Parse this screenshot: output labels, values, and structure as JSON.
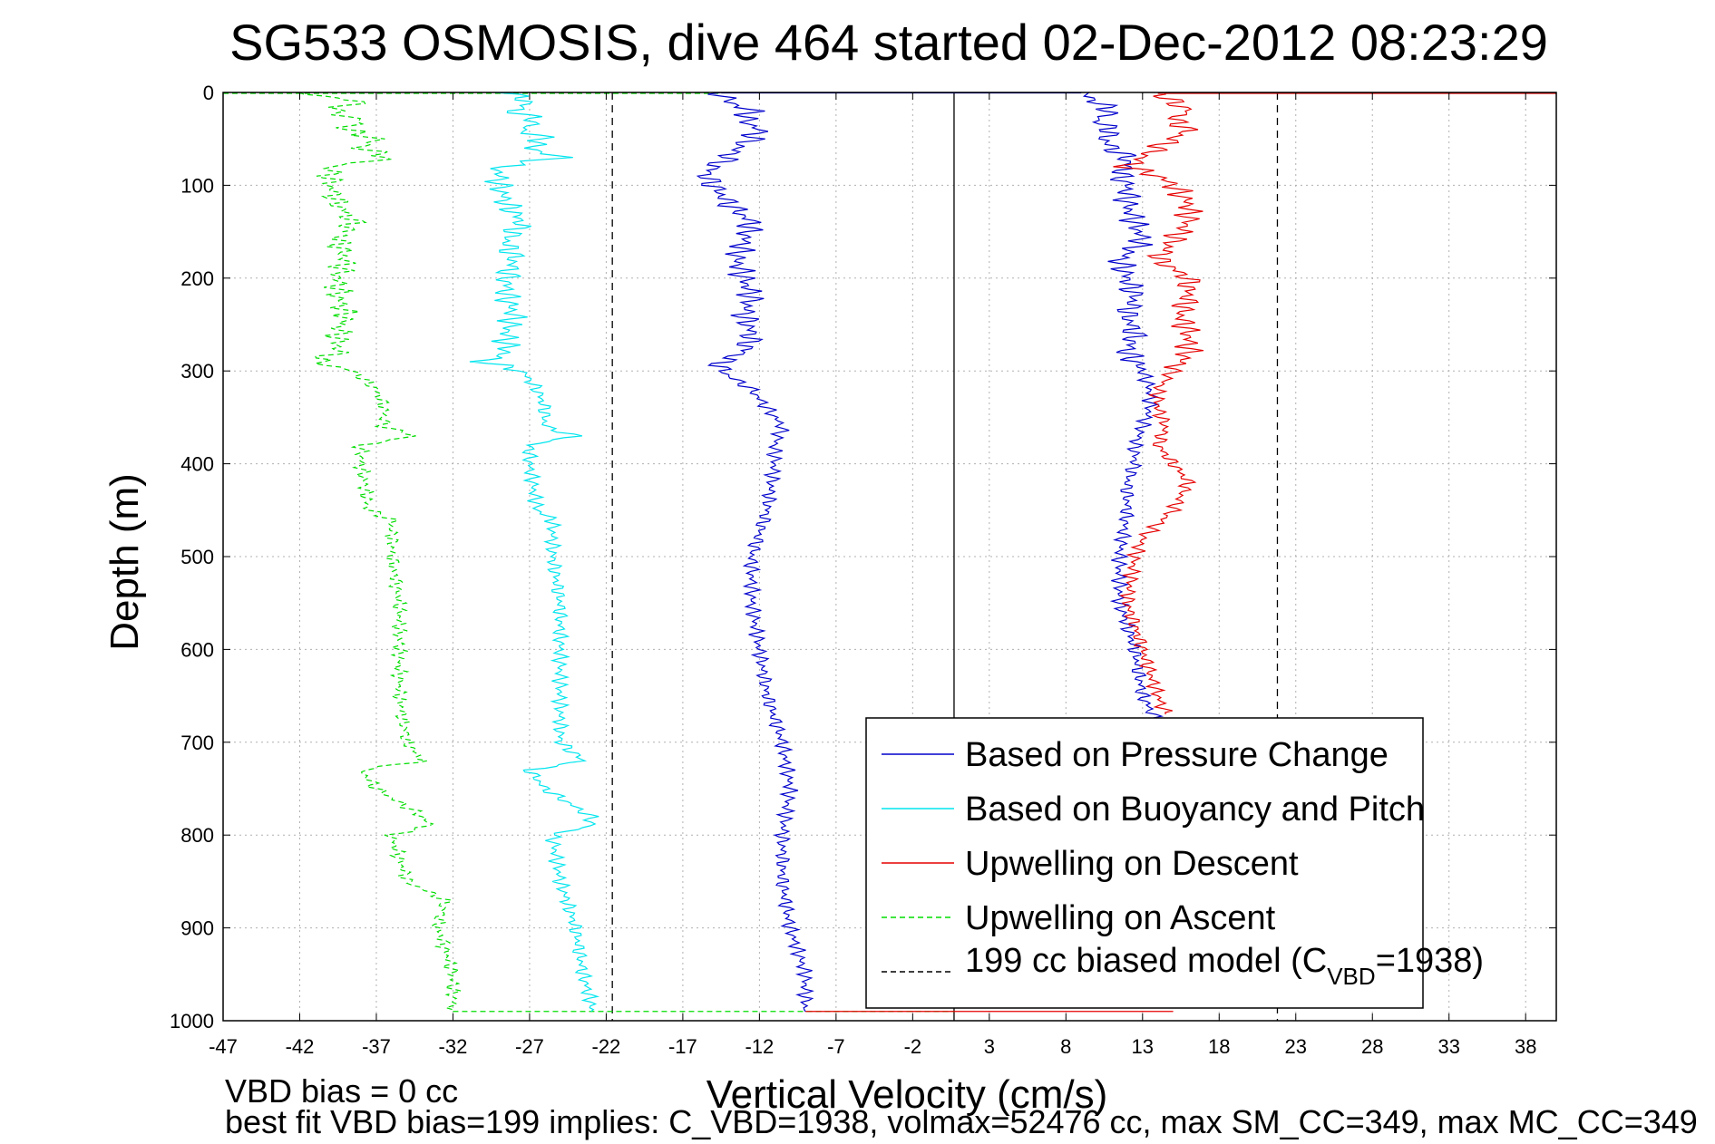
{
  "chart_data": {
    "type": "line",
    "title": "SG533 OSMOSIS, dive 464 started 02-Dec-2012 08:23:29",
    "xlabel": "Vertical Velocity (cm/s)",
    "ylabel": "Depth (m)",
    "xlim": [
      -47,
      40
    ],
    "ylim": [
      0,
      1000
    ],
    "y_reversed": true,
    "grid": true,
    "xticks": [
      -47,
      -42,
      -37,
      -32,
      -27,
      -22,
      -17,
      -12,
      -7,
      -2,
      3,
      8,
      13,
      18,
      23,
      28,
      33,
      38
    ],
    "yticks": [
      0,
      100,
      200,
      300,
      400,
      500,
      600,
      700,
      800,
      900,
      1000
    ],
    "xtick_labels": [
      "-47",
      "-42",
      "-37",
      "-32",
      "-27",
      "-22",
      "-17",
      "-12",
      "-7",
      "-2",
      "3",
      "8",
      "13",
      "18",
      "23",
      "28",
      "33",
      "38"
    ],
    "ytick_labels": [
      "0",
      "100",
      "200",
      "300",
      "400",
      "500",
      "600",
      "700",
      "800",
      "900",
      "1000"
    ],
    "legend_position": "bottom-right",
    "legend": {
      "pressure": "Based on Pressure Change",
      "buoyancy": "Based on Buoyancy and Pitch",
      "descent": "Upwelling on Descent",
      "ascent": "Upwelling on Ascent",
      "model_prefix": "199 cc biased model (C",
      "model_sub": "VBD",
      "model_suffix": "=1938)"
    },
    "colors": {
      "pressure": "#0000cc",
      "buoyancy": "#00e5ee",
      "descent": "#e60000",
      "ascent": "#00dd00",
      "model": "#000000",
      "grid": "#b0b0b0"
    },
    "reference_lines": [
      {
        "x": 0.7,
        "style": "solid"
      },
      {
        "x": -21.6,
        "style": "dashed"
      },
      {
        "x": 21.8,
        "style": "dashed"
      }
    ],
    "series": [
      {
        "key": "pressure",
        "depth": [
          0,
          10,
          20,
          30,
          40,
          50,
          60,
          70,
          80,
          90,
          100,
          120,
          140,
          160,
          180,
          200,
          220,
          240,
          260,
          280,
          290,
          300,
          320,
          340,
          360,
          380,
          400,
          450,
          500,
          550,
          600,
          650,
          700,
          750,
          800,
          850,
          900,
          950,
          980,
          990
        ],
        "x": [
          -14.5,
          -14,
          -12.5,
          -13,
          -12,
          -12.5,
          -13.5,
          -14,
          -15,
          -15.5,
          -15,
          -14,
          -12.5,
          -13,
          -13.5,
          -13,
          -12.5,
          -13,
          -12.5,
          -13,
          -14.5,
          -14.5,
          -12.5,
          -11.5,
          -10.5,
          -11,
          -11,
          -11.5,
          -12.5,
          -12.5,
          -12,
          -11.5,
          -10.5,
          -10,
          -10.5,
          -10.5,
          -10,
          -9,
          -9,
          -9
        ]
      },
      {
        "key": "pressure",
        "depth": [
          0,
          10,
          20,
          30,
          40,
          50,
          60,
          70,
          80,
          90,
          100,
          120,
          140,
          160,
          180,
          200,
          220,
          240,
          260,
          280,
          300,
          320,
          340,
          360,
          380,
          400,
          420,
          450,
          500,
          550,
          600,
          650,
          680
        ],
        "x": [
          9,
          10,
          11,
          10,
          11,
          10.5,
          11,
          12,
          12,
          11.5,
          12,
          12,
          12.5,
          13,
          11.5,
          12,
          12.5,
          12,
          12.5,
          12,
          13,
          13.5,
          13.5,
          13,
          12.5,
          12.5,
          12,
          12,
          11.5,
          11.5,
          12.5,
          13,
          14
        ]
      },
      {
        "key": "descent",
        "depth": [
          0,
          10,
          20,
          30,
          40,
          50,
          60,
          70,
          80,
          90,
          100,
          120,
          140,
          160,
          180,
          200,
          220,
          240,
          260,
          280,
          300,
          320,
          340,
          360,
          380,
          400,
          420,
          450,
          480,
          500,
          550,
          600,
          650,
          670
        ],
        "x": [
          14,
          15,
          16,
          15,
          16,
          15,
          14,
          13,
          12,
          14,
          15,
          16,
          16,
          15,
          14,
          16,
          16,
          15.5,
          16,
          16,
          15,
          14,
          14,
          14.5,
          14,
          15,
          16,
          15,
          13,
          12.5,
          12,
          13,
          14,
          14.5
        ]
      },
      {
        "key": "buoyancy",
        "depth": [
          0,
          10,
          20,
          30,
          40,
          50,
          60,
          70,
          80,
          90,
          100,
          120,
          140,
          160,
          180,
          200,
          220,
          240,
          260,
          280,
          290,
          300,
          320,
          340,
          360,
          370,
          380,
          400,
          450,
          460,
          500,
          550,
          600,
          650,
          700,
          720,
          730,
          750,
          780,
          790,
          800,
          850,
          900,
          950,
          980,
          990
        ],
        "x": [
          -28.5,
          -27,
          -28,
          -26.5,
          -27.5,
          -26,
          -27,
          -25,
          -29,
          -29,
          -29,
          -28.5,
          -27.5,
          -28.5,
          -28,
          -28.5,
          -28.5,
          -28,
          -28.5,
          -28.5,
          -30,
          -27.5,
          -26.5,
          -26,
          -26,
          -24,
          -27,
          -27,
          -26.5,
          -25.5,
          -25.5,
          -25,
          -25,
          -25,
          -25,
          -23.5,
          -27,
          -26,
          -23,
          -23,
          -25.5,
          -25,
          -24,
          -23.5,
          -23,
          -23
        ]
      },
      {
        "key": "ascent",
        "depth": [
          0,
          10,
          20,
          30,
          40,
          50,
          60,
          70,
          80,
          90,
          100,
          120,
          140,
          160,
          180,
          200,
          220,
          240,
          260,
          280,
          290,
          300,
          320,
          340,
          360,
          370,
          380,
          400,
          450,
          460,
          500,
          550,
          600,
          650,
          700,
          720,
          730,
          750,
          780,
          790,
          800,
          850,
          870,
          900,
          950,
          980,
          990
        ],
        "x": [
          -42,
          -38,
          -40,
          -38,
          -39,
          -37,
          -38,
          -36,
          -40,
          -40,
          -40,
          -39.5,
          -38.5,
          -39.5,
          -39,
          -39.5,
          -39.5,
          -39,
          -39.5,
          -39.5,
          -41,
          -38.5,
          -37,
          -36.5,
          -36.5,
          -34.5,
          -38,
          -38,
          -37.5,
          -36,
          -36,
          -35.5,
          -35.5,
          -35.5,
          -35,
          -34,
          -38,
          -37,
          -34,
          -33.5,
          -36,
          -35,
          -32.5,
          -33,
          -32,
          -32,
          -32
        ]
      }
    ]
  },
  "footer": {
    "line1": "VBD bias = 0 cc",
    "line2": "best fit VBD bias=199 implies: C_VBD=1938, volmax=52476 cc, max SM_CC=349, max MC_CC=349"
  }
}
